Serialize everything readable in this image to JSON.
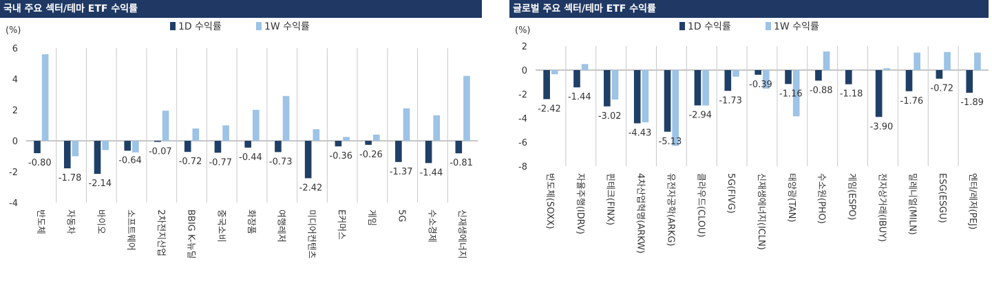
{
  "colors": {
    "title_bg": "#1f3864",
    "series_1d": "#1f3f66",
    "series_1w": "#9dc3e6"
  },
  "chart_data": [
    {
      "type": "bar",
      "title": "국내 주요 섹터/테마 ETF 수익률",
      "ylabel": "(%)",
      "ylim": [
        -4,
        6
      ],
      "yticks": [
        6,
        4,
        2,
        0,
        -2,
        -4
      ],
      "legend": "top-center",
      "categories": [
        "반도체",
        "자동차",
        "바이오",
        "소프트웨어",
        "2차전지산업",
        "BBIG K-뉴딜",
        "중국소비",
        "화장품",
        "여행레저",
        "미디어컨텐츠",
        "E커머스",
        "게임",
        "5G",
        "수소경제",
        "신재생에너지"
      ],
      "series": [
        {
          "name": "1D 수익률",
          "values": [
            -0.8,
            -1.78,
            -2.14,
            -0.64,
            -0.07,
            -0.72,
            -0.77,
            -0.44,
            -0.73,
            -2.42,
            -0.36,
            -0.26,
            -1.37,
            -1.44,
            -0.81
          ]
        },
        {
          "name": "1W 수익률",
          "values": [
            5.6,
            -1.0,
            -0.6,
            -0.75,
            1.95,
            0.8,
            1.0,
            2.0,
            2.9,
            0.75,
            0.25,
            0.4,
            2.1,
            1.65,
            4.2
          ]
        }
      ],
      "data_labels": [
        "-0.80",
        "-1.78",
        "-2.14",
        "-0.64",
        "-0.07",
        "-0.72",
        "-0.77",
        "-0.44",
        "-0.73",
        "-2.42",
        "-0.36",
        "-0.26",
        "-1.37",
        "-1.44",
        "-0.81"
      ]
    },
    {
      "type": "bar",
      "title": "글로벌 주요 섹터/테마 ETF 수익률",
      "ylabel": "(%)",
      "ylim": [
        -8,
        2
      ],
      "yticks": [
        2,
        0,
        -2,
        -4,
        -6,
        -8
      ],
      "legend": "top-center",
      "categories": [
        "반도체(SOXX)",
        "자율주행(IDRV)",
        "핀테크(FINX)",
        "4차산업혁명(ARKW)",
        "유전자공학(ARKG)",
        "클라우드(CLOU)",
        "5G(FIVG)",
        "신재생에너지(ICLN)",
        "태양광(TAN)",
        "수소원(PHO)",
        "게임(ESPO)",
        "전자상거래(IBUY)",
        "밀레니얼(MILN)",
        "ESG(ESGU)",
        "엔터/레저(PEJ)"
      ],
      "series": [
        {
          "name": "1D 수익률",
          "values": [
            -2.42,
            -1.44,
            -3.02,
            -4.43,
            -5.13,
            -2.94,
            -1.73,
            -0.39,
            -1.16,
            -0.88,
            -1.18,
            -3.9,
            -1.76,
            -0.72,
            -1.89
          ]
        },
        {
          "name": "1W 수익률",
          "values": [
            -0.35,
            0.5,
            -2.45,
            -4.35,
            -6.3,
            -2.95,
            -0.55,
            -1.55,
            -3.85,
            1.55,
            0.0,
            0.15,
            1.45,
            1.5,
            1.45
          ]
        }
      ],
      "data_labels": [
        "-2.42",
        "-1.44",
        "-3.02",
        "-4.43",
        "-5.13",
        "-2.94",
        "-1.73",
        "-0.39",
        "-1.16",
        "-0.88",
        "-1.18",
        "-3.90",
        "-1.76",
        "-0.72",
        "-1.89"
      ]
    }
  ]
}
